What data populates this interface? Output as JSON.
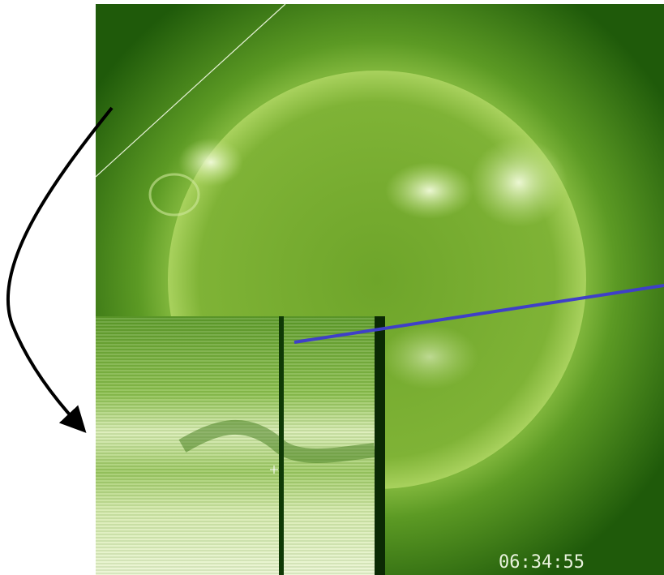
{
  "timestamp": "06:34:55"
}
